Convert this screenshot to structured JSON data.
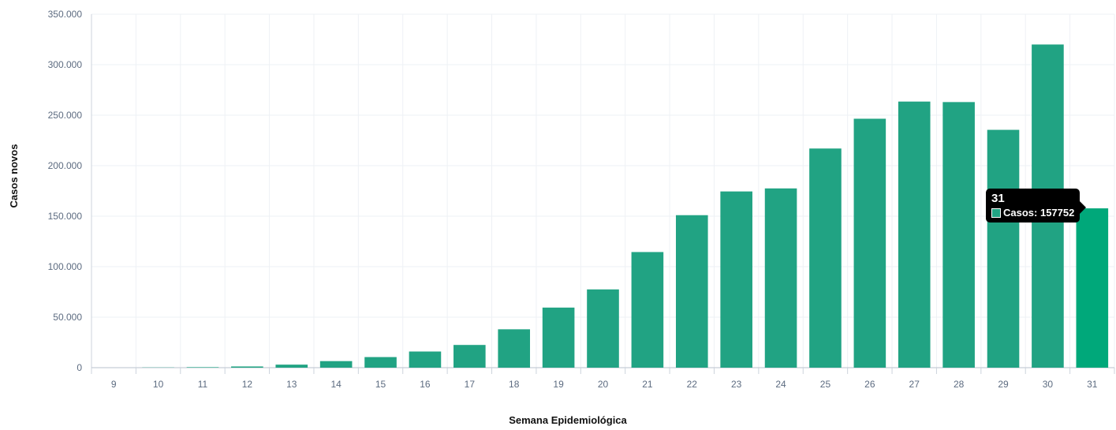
{
  "chart_data": {
    "type": "bar",
    "xlabel": "Semana Epidemiológica",
    "ylabel": "Casos novos",
    "categories": [
      "9",
      "10",
      "11",
      "12",
      "13",
      "14",
      "15",
      "16",
      "17",
      "18",
      "19",
      "20",
      "21",
      "22",
      "23",
      "24",
      "25",
      "26",
      "27",
      "28",
      "29",
      "30",
      "31"
    ],
    "series": [
      {
        "name": "Casos",
        "color": "#21a383",
        "values": [
          2,
          200,
          500,
          1200,
          3000,
          6500,
          10500,
          16000,
          22500,
          38000,
          59500,
          77500,
          114500,
          151000,
          174500,
          177500,
          217000,
          246500,
          263500,
          263000,
          235500,
          320000,
          157752
        ]
      }
    ],
    "ylim": [
      0,
      350000
    ],
    "yticks": [
      0,
      50000,
      100000,
      150000,
      200000,
      250000,
      300000,
      350000
    ],
    "ytick_labels": [
      "0",
      "50.000",
      "100.000",
      "150.000",
      "200.000",
      "250.000",
      "300.000",
      "350.000"
    ],
    "grid": true,
    "highlight_color": "#00a87a",
    "tooltip": {
      "title": "31",
      "label": "Casos: 157752",
      "index": 22
    }
  }
}
